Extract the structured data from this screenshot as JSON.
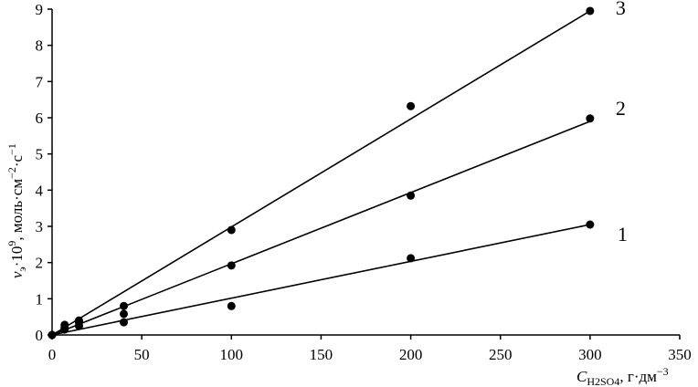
{
  "chart_data": {
    "type": "scatter",
    "title": "",
    "xlabel_main": "C",
    "xlabel_sub": "H2SO4",
    "xlabel_rest": ", г·дм",
    "xlabel_sup": "−3",
    "ylabel_main": "v",
    "ylabel_sub": "э",
    "ylabel_mid": "·10",
    "ylabel_sup1": "9",
    "ylabel_rest1": ", моль·см",
    "ylabel_sup2": "−2",
    "ylabel_rest2": "·с",
    "ylabel_sup3": "−1",
    "xlim": [
      0,
      350
    ],
    "ylim": [
      0,
      9
    ],
    "xticks": [
      "0",
      "50",
      "100",
      "150",
      "200",
      "250",
      "300",
      "350"
    ],
    "yticks": [
      "0",
      "1",
      "2",
      "3",
      "4",
      "5",
      "6",
      "7",
      "8",
      "9"
    ],
    "grid": false,
    "series": [
      {
        "name": "1",
        "points": [
          [
            0,
            0
          ],
          [
            7,
            0.15
          ],
          [
            15,
            0.25
          ],
          [
            40,
            0.35
          ],
          [
            100,
            0.8
          ],
          [
            200,
            2.12
          ],
          [
            300,
            3.05
          ]
        ],
        "fit": [
          [
            0,
            0
          ],
          [
            300,
            3.05
          ]
        ]
      },
      {
        "name": "2",
        "points": [
          [
            0,
            0
          ],
          [
            7,
            0.2
          ],
          [
            15,
            0.35
          ],
          [
            40,
            0.58
          ],
          [
            100,
            1.92
          ],
          [
            200,
            3.85
          ],
          [
            300,
            5.98
          ]
        ],
        "fit": [
          [
            0,
            0
          ],
          [
            300,
            5.9
          ]
        ]
      },
      {
        "name": "3",
        "points": [
          [
            0,
            0
          ],
          [
            7,
            0.28
          ],
          [
            15,
            0.4
          ],
          [
            40,
            0.8
          ],
          [
            100,
            2.9
          ],
          [
            200,
            6.32
          ],
          [
            300,
            8.95
          ]
        ],
        "fit": [
          [
            0,
            0
          ],
          [
            300,
            8.95
          ]
        ]
      }
    ]
  }
}
